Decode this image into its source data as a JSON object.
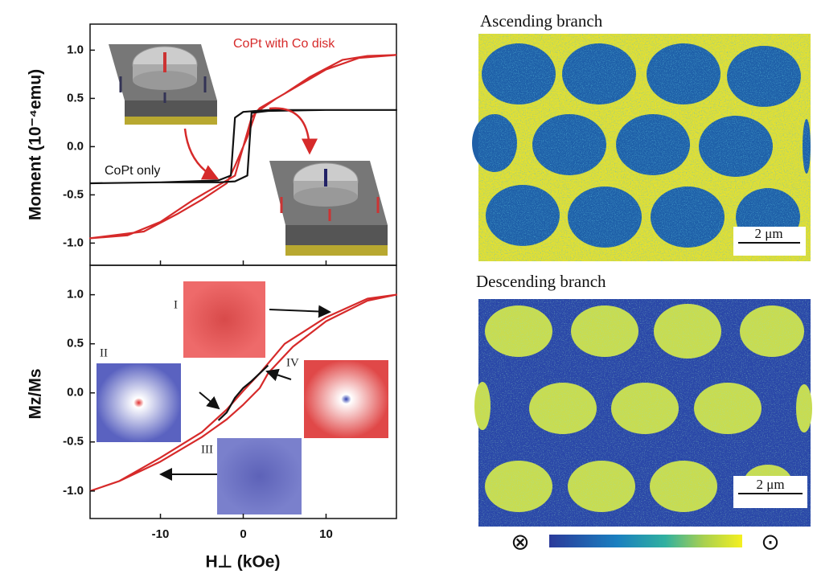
{
  "chart_data": [
    {
      "type": "line",
      "ylabel": "Moment (10⁻⁴emu)",
      "xlim": [
        -18.5,
        18.5
      ],
      "ylim": [
        -1.23,
        1.27
      ],
      "xticks": [
        -10,
        0,
        10
      ],
      "yticks": [
        {
          "value": -1,
          "label": "-1.0"
        },
        -0.5,
        {
          "value": 0,
          "label": "0.0"
        },
        0.5,
        {
          "value": 1,
          "label": "1.0"
        }
      ],
      "series": [
        {
          "name": "CoPt with Co disk",
          "color": "#d62a2a",
          "x": [
            18.5,
            15,
            12,
            8,
            5,
            2,
            1,
            0,
            -1,
            -3,
            -6,
            -10,
            -14,
            -18.5,
            -12,
            -8,
            -5,
            -2,
            -1,
            0.5,
            1.5,
            4,
            7,
            10,
            14,
            18.5
          ],
          "values": [
            0.95,
            0.94,
            0.9,
            0.72,
            0.55,
            0.4,
            0.3,
            0,
            -0.3,
            -0.4,
            -0.55,
            -0.78,
            -0.92,
            -0.95,
            -0.88,
            -0.7,
            -0.55,
            -0.38,
            -0.2,
            0.1,
            0.35,
            0.5,
            0.65,
            0.8,
            0.92,
            0.95
          ]
        },
        {
          "name": "CoPt only",
          "color": "#111111",
          "x": [
            -18.5,
            -10,
            -3,
            -1.5,
            -1,
            0,
            3,
            10,
            18.5,
            10,
            3,
            1,
            0.5,
            -1,
            -3,
            -10,
            -18.5
          ],
          "values": [
            -0.38,
            -0.37,
            -0.35,
            -0.3,
            0.3,
            0.36,
            0.38,
            0.38,
            0.38,
            0.38,
            0.37,
            0.35,
            -0.3,
            -0.36,
            -0.37,
            -0.37,
            -0.38
          ]
        }
      ]
    },
    {
      "type": "line",
      "xlabel": "H⊥ (kOe)",
      "ylabel": "Mz/Ms",
      "xlim": [
        -18.5,
        18.5
      ],
      "ylim": [
        -1.28,
        1.3
      ],
      "xticks": [
        -10,
        0,
        10
      ],
      "yticks": [
        {
          "value": -1,
          "label": "-1.0"
        },
        -0.5,
        {
          "value": 0,
          "label": "0.0"
        },
        0.5,
        {
          "value": 1,
          "label": "1.0"
        }
      ],
      "annotations": [
        "I",
        "II",
        "III",
        "IV"
      ],
      "series": [
        {
          "color": "#d62a2a",
          "x": [
            -18.5,
            -15,
            -10,
            -5,
            -2,
            0,
            2,
            3,
            6,
            10,
            15,
            18.5,
            15,
            10,
            5,
            2,
            0,
            -2,
            -5,
            -10,
            -15,
            -18.5
          ],
          "values": [
            -1.0,
            -0.9,
            -0.7,
            -0.45,
            -0.27,
            -0.12,
            0.05,
            0.2,
            0.47,
            0.73,
            0.94,
            1.0,
            0.96,
            0.77,
            0.5,
            0.2,
            0.02,
            -0.17,
            -0.4,
            -0.66,
            -0.9,
            -1.0
          ]
        },
        {
          "color": "#111111",
          "x": [
            -3,
            -2,
            -1,
            0,
            1,
            2,
            3
          ],
          "values": [
            -0.28,
            -0.2,
            -0.05,
            0.05,
            0.12,
            0.2,
            0.28
          ]
        }
      ]
    }
  ],
  "images": {
    "ascending_title": "Ascending branch",
    "descending_title": "Descending branch",
    "scale_bar_top": "2 μm",
    "scale_bar_bottom": "2 μm",
    "colorbar_min_symbol": "⊗",
    "colorbar_max_symbol": "⊙"
  }
}
